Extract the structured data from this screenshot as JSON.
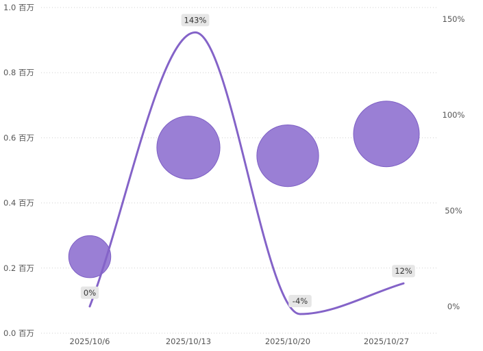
{
  "chart_data": {
    "type": "bubble+line",
    "title": "",
    "x": [
      "2025/10/6",
      "2025/10/13",
      "2025/10/20",
      "2025/10/27"
    ],
    "left_axis": {
      "ticks": [
        "0.0 百万",
        "0.2 百万",
        "0.4 百万",
        "0.6 百万",
        "0.8 百万",
        "1.0 百万"
      ],
      "range": [
        0,
        1000000
      ]
    },
    "right_axis": {
      "ticks": [
        "0%",
        "50%",
        "100%",
        "150%"
      ],
      "range": [
        -14,
        156
      ]
    },
    "bubbles": {
      "values": [
        235000,
        570000,
        545000,
        612000
      ],
      "relative_size": [
        0.32,
        0.48,
        0.47,
        0.5
      ]
    },
    "line": {
      "values": [
        0,
        143,
        -4,
        12
      ],
      "labels": [
        "0%",
        "143%",
        "-4%",
        "12%"
      ]
    },
    "grid": true,
    "colors": {
      "bubble_fill": "#9a7fd5",
      "bubble_stroke": "#7d5fc4",
      "line": "#8463c8",
      "label_bg": "#e6e6e6",
      "grid": "#cfcfcf"
    }
  }
}
